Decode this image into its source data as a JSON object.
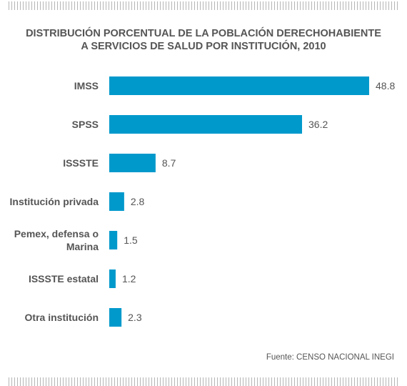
{
  "chart_data": {
    "type": "bar",
    "orientation": "horizontal",
    "title": "DISTRIBUCIÓN PORCENTUAL DE LA POBLACIÓN DERECHOHABIENTE A SERVICIOS DE SALUD POR INSTITUCIÓN, 2010",
    "title_lines": [
      "DISTRIBUCIÓN PORCENTUAL DE LA POBLACIÓN DERECHOHABIENTE",
      "A SERVICIOS DE SALUD POR INSTITUCIÓN, 2010"
    ],
    "categories": [
      "IMSS",
      "SPSS",
      "ISSSTE",
      "Institución privada",
      "Pemex, defensa o Marina",
      "ISSSTE estatal",
      "Otra institución"
    ],
    "category_lines": [
      [
        "IMSS"
      ],
      [
        "SPSS"
      ],
      [
        "ISSSTE"
      ],
      [
        "Institución privada"
      ],
      [
        "Pemex, defensa o",
        "Marina"
      ],
      [
        "ISSSTE estatal"
      ],
      [
        "Otra institución"
      ]
    ],
    "values": [
      48.8,
      36.2,
      8.7,
      2.8,
      1.5,
      1.2,
      2.3
    ],
    "value_labels": [
      "48.8",
      "36.2",
      "8.7",
      "2.8",
      "1.5",
      "1.2",
      "2.3"
    ],
    "xlim": [
      0,
      48.8
    ],
    "bar_color": "#0099cc",
    "grid": false,
    "legend": "none",
    "source": "Fuente: CENSO NACIONAL INEGI"
  }
}
